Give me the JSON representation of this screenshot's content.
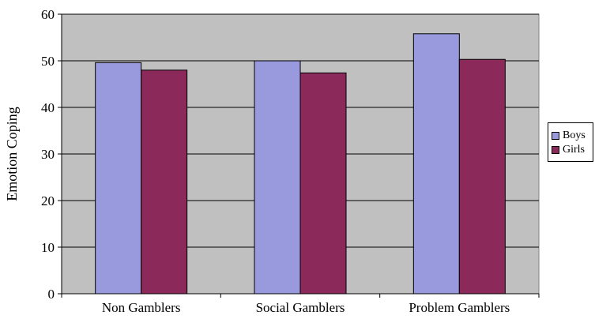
{
  "chart_data": {
    "type": "bar",
    "categories": [
      "Non Gamblers",
      "Social Gamblers",
      "Problem Gamblers"
    ],
    "series": [
      {
        "name": "Boys",
        "values": [
          49.6,
          50.0,
          55.8
        ],
        "color": "#9999dd"
      },
      {
        "name": "Girls",
        "values": [
          48.0,
          47.4,
          50.3
        ],
        "color": "#8b2a5a"
      }
    ],
    "title": "",
    "xlabel": "",
    "ylabel": "Emotion Coping",
    "ylim": [
      0,
      60
    ],
    "yticks": [
      "0",
      "10",
      "20",
      "30",
      "40",
      "50",
      "60"
    ],
    "grid": true,
    "plot_background": "#c0c0c0",
    "legend_position": "right"
  }
}
